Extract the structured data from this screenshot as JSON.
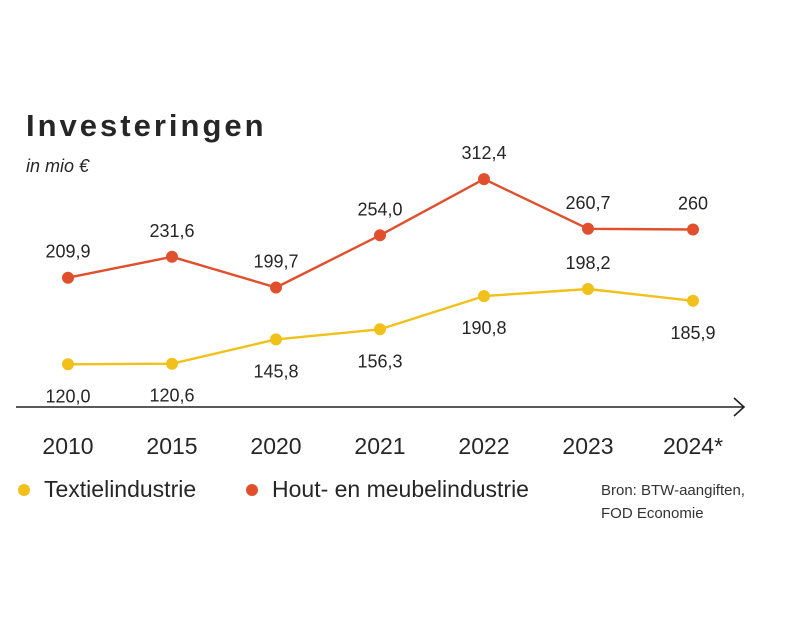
{
  "title": "Investeringen",
  "subtitle": "in mio €",
  "source_line1": "Bron: BTW-aangiften,",
  "source_line2": "FOD Economie",
  "colors": {
    "textiel": "#f2c01a",
    "hout": "#e0502d",
    "axis": "#222222"
  },
  "chart_data": {
    "type": "line",
    "categories": [
      "2010",
      "2015",
      "2020",
      "2021",
      "2022",
      "2023",
      "2024*"
    ],
    "series": [
      {
        "name": "Hout- en meubelindustrie",
        "color": "#e0502d",
        "values": [
          209.9,
          231.6,
          199.7,
          254.0,
          312.4,
          260.7,
          260
        ],
        "labels": [
          "209,9",
          "231,6",
          "199,7",
          "254,0",
          "312,4",
          "260,7",
          "260"
        ]
      },
      {
        "name": "Textielindustrie",
        "color": "#f2c01a",
        "values": [
          120.0,
          120.6,
          145.8,
          156.3,
          190.8,
          198.2,
          185.9
        ],
        "labels": [
          "120,0",
          "120,6",
          "145,8",
          "156,3",
          "190,8",
          "198,2",
          "185,9"
        ]
      }
    ],
    "title": "Investeringen",
    "ylabel": "in mio €",
    "grid": false,
    "legend_position": "bottom"
  }
}
